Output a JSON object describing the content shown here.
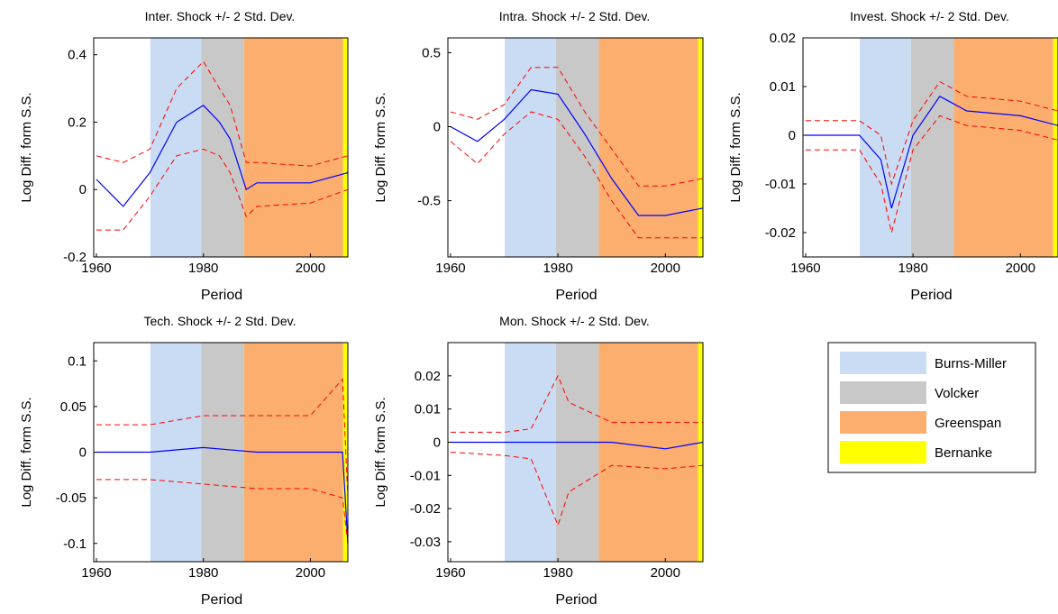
{
  "eras": [
    {
      "name": "Burns-Miller",
      "start": 1970.1,
      "end": 1979.6,
      "color": "#c9dcf3"
    },
    {
      "name": "Volcker",
      "start": 1979.6,
      "end": 1987.6,
      "color": "#c8c8c8"
    },
    {
      "name": "Greenspan",
      "start": 1987.6,
      "end": 2006.1,
      "color": "#fbae6e"
    },
    {
      "name": "Bernanke",
      "start": 2006.1,
      "end": 2007.0,
      "color": "#ffff00"
    }
  ],
  "colors": {
    "estimate": "#0000ff",
    "band": "#ff0000"
  },
  "chart_data": [
    {
      "type": "line",
      "title": "Inter. Shock +/- 2 Std. Dev.",
      "xlabel": "Period",
      "ylabel": "Log Diff. form S.S.",
      "xlim": [
        1959.5,
        2007
      ],
      "ylim": [
        -0.2,
        0.45
      ],
      "xticks": [
        1960,
        1980,
        2000
      ],
      "yticks": [
        {
          "value": -0.2,
          "label": "-0.2"
        },
        {
          "value": 0,
          "label": "0"
        },
        {
          "value": 0.2,
          "label": "0.2"
        },
        {
          "value": 0.4,
          "label": "0.4"
        }
      ],
      "series_description": "estimate with +/- 2 std. dev. bands",
      "series": [
        {
          "x": [
            1960,
            1965,
            1970,
            1975,
            1980,
            1983,
            1985,
            1988,
            1990,
            2000,
            2007
          ],
          "values": [
            0.03,
            -0.05,
            0.05,
            0.2,
            0.25,
            0.2,
            0.15,
            0.0,
            0.02,
            0.02,
            0.05
          ]
        },
        {
          "x": [
            1960,
            1965,
            1970,
            1975,
            1980,
            1983,
            1985,
            1988,
            1990,
            2000,
            2007
          ],
          "values": [
            0.1,
            0.08,
            0.12,
            0.3,
            0.38,
            0.3,
            0.25,
            0.08,
            0.08,
            0.07,
            0.1
          ]
        },
        {
          "x": [
            1960,
            1965,
            1970,
            1975,
            1980,
            1983,
            1985,
            1988,
            1990,
            2000,
            2007
          ],
          "values": [
            -0.12,
            -0.12,
            -0.02,
            0.1,
            0.12,
            0.1,
            0.05,
            -0.08,
            -0.05,
            -0.04,
            0.0
          ]
        }
      ]
    },
    {
      "type": "line",
      "title": "Intra. Shock +/- 2 Std. Dev.",
      "xlabel": "Period",
      "ylabel": "Log Diff. form S.S.",
      "xlim": [
        1959.5,
        2007
      ],
      "ylim": [
        -0.88,
        0.6
      ],
      "xticks": [
        1960,
        1980,
        2000
      ],
      "yticks": [
        {
          "value": -0.5,
          "label": "-0.5"
        },
        {
          "value": 0,
          "label": "0"
        },
        {
          "value": 0.5,
          "label": "0.5"
        }
      ],
      "series": [
        {
          "x": [
            1960,
            1965,
            1970,
            1975,
            1980,
            1985,
            1990,
            1995,
            2000,
            2007
          ],
          "values": [
            0.0,
            -0.1,
            0.05,
            0.25,
            0.22,
            -0.05,
            -0.35,
            -0.6,
            -0.6,
            -0.55
          ]
        },
        {
          "x": [
            1960,
            1965,
            1970,
            1975,
            1980,
            1985,
            1990,
            1995,
            2000,
            2007
          ],
          "values": [
            0.1,
            0.05,
            0.15,
            0.4,
            0.4,
            0.1,
            -0.15,
            -0.4,
            -0.4,
            -0.35
          ]
        },
        {
          "x": [
            1960,
            1965,
            1970,
            1975,
            1980,
            1985,
            1990,
            1995,
            2000,
            2007
          ],
          "values": [
            -0.1,
            -0.25,
            -0.05,
            0.1,
            0.05,
            -0.2,
            -0.5,
            -0.75,
            -0.75,
            -0.75
          ]
        }
      ]
    },
    {
      "type": "line",
      "title": "Invest. Shock +/- 2 Std. Dev.",
      "xlabel": "Period",
      "ylabel": "Log Diff. form S.S.",
      "xlim": [
        1959.5,
        2007
      ],
      "ylim": [
        -0.025,
        0.02
      ],
      "xticks": [
        1960,
        1980,
        2000
      ],
      "yticks": [
        {
          "value": -0.02,
          "label": "-0.02"
        },
        {
          "value": -0.01,
          "label": "-0.01"
        },
        {
          "value": 0,
          "label": "0"
        },
        {
          "value": 0.01,
          "label": "0.01"
        },
        {
          "value": 0.02,
          "label": "0.02"
        }
      ],
      "series": [
        {
          "x": [
            1960,
            1965,
            1970,
            1974,
            1976,
            1980,
            1985,
            1990,
            2000,
            2007
          ],
          "values": [
            0.0,
            0.0,
            0.0,
            -0.005,
            -0.015,
            0.0,
            0.008,
            0.005,
            0.004,
            0.002
          ]
        },
        {
          "x": [
            1960,
            1965,
            1970,
            1974,
            1976,
            1980,
            1985,
            1990,
            2000,
            2007
          ],
          "values": [
            0.003,
            0.003,
            0.003,
            0.0,
            -0.01,
            0.003,
            0.011,
            0.008,
            0.007,
            0.005
          ]
        },
        {
          "x": [
            1960,
            1965,
            1970,
            1974,
            1976,
            1980,
            1985,
            1990,
            2000,
            2007
          ],
          "values": [
            -0.003,
            -0.003,
            -0.003,
            -0.01,
            -0.02,
            -0.003,
            0.004,
            0.002,
            0.001,
            -0.001
          ]
        }
      ]
    },
    {
      "type": "line",
      "title": "Tech. Shock +/- 2 Std. Dev.",
      "xlabel": "Period",
      "ylabel": "Log Diff. form S.S.",
      "xlim": [
        1959.5,
        2007
      ],
      "ylim": [
        -0.12,
        0.12
      ],
      "xticks": [
        1960,
        1980,
        2000
      ],
      "yticks": [
        {
          "value": -0.1,
          "label": "-0.1"
        },
        {
          "value": -0.05,
          "label": "-0.05"
        },
        {
          "value": 0,
          "label": "0"
        },
        {
          "value": 0.05,
          "label": "0.05"
        },
        {
          "value": 0.1,
          "label": "0.1"
        }
      ],
      "series": [
        {
          "x": [
            1960,
            1970,
            1980,
            1990,
            2000,
            2006,
            2007
          ],
          "values": [
            0.0,
            0.0,
            0.005,
            0.0,
            0.0,
            0.0,
            -0.1
          ]
        },
        {
          "x": [
            1960,
            1970,
            1980,
            1990,
            2000,
            2006,
            2007
          ],
          "values": [
            0.03,
            0.03,
            0.04,
            0.04,
            0.04,
            0.08,
            -0.05
          ]
        },
        {
          "x": [
            1960,
            1970,
            1980,
            1990,
            2000,
            2006,
            2007
          ],
          "values": [
            -0.03,
            -0.03,
            -0.035,
            -0.04,
            -0.04,
            -0.05,
            -0.1
          ]
        }
      ]
    },
    {
      "type": "line",
      "title": "Mon. Shock +/- 2 Std. Dev.",
      "xlabel": "Period",
      "ylabel": "Log Diff. form S.S.",
      "xlim": [
        1959.5,
        2007
      ],
      "ylim": [
        -0.036,
        0.03
      ],
      "xticks": [
        1960,
        1980,
        2000
      ],
      "yticks": [
        {
          "value": -0.03,
          "label": "-0.03"
        },
        {
          "value": -0.02,
          "label": "-0.02"
        },
        {
          "value": -0.01,
          "label": "-0.01"
        },
        {
          "value": 0,
          "label": "0"
        },
        {
          "value": 0.01,
          "label": "0.01"
        },
        {
          "value": 0.02,
          "label": "0.02"
        }
      ],
      "series": [
        {
          "x": [
            1960,
            1970,
            1975,
            1980,
            1982,
            1990,
            2000,
            2007
          ],
          "values": [
            0.0,
            0.0,
            0.0,
            0.0,
            0.0,
            0.0,
            -0.002,
            0.0
          ]
        },
        {
          "x": [
            1960,
            1970,
            1975,
            1980,
            1982,
            1990,
            2000,
            2007
          ],
          "values": [
            0.003,
            0.003,
            0.004,
            0.02,
            0.012,
            0.006,
            0.006,
            0.006
          ]
        },
        {
          "x": [
            1960,
            1970,
            1975,
            1980,
            1982,
            1990,
            2000,
            2007
          ],
          "values": [
            -0.003,
            -0.004,
            -0.005,
            -0.025,
            -0.015,
            -0.007,
            -0.008,
            -0.007
          ]
        }
      ]
    }
  ]
}
